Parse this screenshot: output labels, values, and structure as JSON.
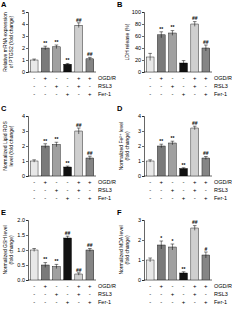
{
  "chart_data": [
    {
      "type": "bar",
      "title": "A",
      "y_label": [
        "Relative mRNA expression",
        "of PTGS2 (fold change)"
      ],
      "categories": [
        null,
        null,
        null,
        null,
        null,
        null
      ],
      "values": [
        1.0,
        2.0,
        2.1,
        0.65,
        3.9,
        1.1
      ],
      "errors": [
        0.08,
        0.15,
        0.15,
        0.06,
        0.2,
        0.12
      ],
      "annotations": [
        null,
        "**",
        "**",
        "**",
        "##",
        "##"
      ],
      "colors": [
        "#e8e8e8",
        "#7a7a7a",
        "#a0a0a0",
        "#111111",
        "#cfcfcf",
        "#858585"
      ],
      "ylim": [
        0,
        5
      ],
      "yticks": [
        0,
        1,
        2,
        3,
        4,
        5
      ],
      "conditions": [
        {
          "name": "OGD/R",
          "signs": [
            "-",
            "+",
            "-",
            "-",
            "+",
            "+"
          ]
        },
        {
          "name": "RSL3",
          "signs": [
            "-",
            "-",
            "+",
            "-",
            "+",
            "-"
          ]
        },
        {
          "name": "Fer-1",
          "signs": [
            "-",
            "-",
            "-",
            "+",
            "-",
            "+"
          ]
        }
      ]
    },
    {
      "type": "bar",
      "title": "B",
      "y_label": [
        "LDH release (%)"
      ],
      "categories": [
        null,
        null,
        null,
        null,
        null,
        null
      ],
      "values": [
        25,
        62,
        65,
        15,
        80,
        40
      ],
      "errors": [
        6,
        5,
        4,
        4,
        4,
        5
      ],
      "annotations": [
        null,
        "**",
        "**",
        null,
        "##",
        "##"
      ],
      "colors": [
        "#e8e8e8",
        "#7a7a7a",
        "#a0a0a0",
        "#111111",
        "#cfcfcf",
        "#858585"
      ],
      "ylim": [
        0,
        100
      ],
      "yticks": [
        0,
        20,
        40,
        60,
        80,
        100
      ],
      "conditions": [
        {
          "name": "OGD/R",
          "signs": [
            "-",
            "+",
            "-",
            "-",
            "+",
            "+"
          ]
        },
        {
          "name": "RSL3",
          "signs": [
            "-",
            "-",
            "+",
            "-",
            "+",
            "-"
          ]
        },
        {
          "name": "Fer-1",
          "signs": [
            "-",
            "-",
            "-",
            "+",
            "-",
            "+"
          ]
        }
      ]
    },
    {
      "type": "bar",
      "title": "C",
      "y_label": [
        "Normalized Lipid ROS",
        "level (fold change)"
      ],
      "categories": [
        null,
        null,
        null,
        null,
        null,
        null
      ],
      "values": [
        1.0,
        2.0,
        2.1,
        0.6,
        3.0,
        1.2
      ],
      "errors": [
        0.08,
        0.15,
        0.15,
        0.06,
        0.2,
        0.12
      ],
      "annotations": [
        null,
        "**",
        "**",
        "**",
        "##",
        "##"
      ],
      "colors": [
        "#e8e8e8",
        "#7a7a7a",
        "#a0a0a0",
        "#111111",
        "#cfcfcf",
        "#858585"
      ],
      "ylim": [
        0,
        4
      ],
      "yticks": [
        0,
        1,
        2,
        3,
        4
      ],
      "conditions": [
        {
          "name": "OGD/R",
          "signs": [
            "-",
            "+",
            "-",
            "-",
            "+",
            "+"
          ]
        },
        {
          "name": "RSL3",
          "signs": [
            "-",
            "-",
            "+",
            "-",
            "+",
            "-"
          ]
        },
        {
          "name": "Fer-1",
          "signs": [
            "-",
            "-",
            "-",
            "+",
            "-",
            "+"
          ]
        }
      ]
    },
    {
      "type": "bar",
      "title": "D",
      "y_label": [
        "Normalized Fe²⁺ level",
        "(fold change)"
      ],
      "categories": [
        null,
        null,
        null,
        null,
        null,
        null
      ],
      "values": [
        1.0,
        2.0,
        2.2,
        0.5,
        3.2,
        1.2
      ],
      "errors": [
        0.08,
        0.12,
        0.12,
        0.05,
        0.12,
        0.1
      ],
      "annotations": [
        null,
        "**",
        "**",
        "**",
        "##",
        "##"
      ],
      "colors": [
        "#e8e8e8",
        "#7a7a7a",
        "#a0a0a0",
        "#111111",
        "#cfcfcf",
        "#858585"
      ],
      "ylim": [
        0,
        4
      ],
      "yticks": [
        0,
        1,
        2,
        3,
        4
      ],
      "conditions": [
        {
          "name": "OGD/R",
          "signs": [
            "-",
            "+",
            "-",
            "-",
            "+",
            "+"
          ]
        },
        {
          "name": "RSL3",
          "signs": [
            "-",
            "-",
            "+",
            "-",
            "+",
            "-"
          ]
        },
        {
          "name": "Fer-1",
          "signs": [
            "-",
            "-",
            "-",
            "+",
            "-",
            "+"
          ]
        }
      ]
    },
    {
      "type": "bar",
      "title": "E",
      "y_label": [
        "Normalized GSH level",
        "(fold change)"
      ],
      "categories": [
        null,
        null,
        null,
        null,
        null,
        null
      ],
      "values": [
        1.0,
        0.5,
        0.45,
        1.4,
        0.2,
        1.0
      ],
      "errors": [
        0.05,
        0.08,
        0.07,
        0.06,
        0.04,
        0.05
      ],
      "annotations": [
        null,
        "**",
        "**",
        "##",
        "##",
        "##"
      ],
      "colors": [
        "#e8e8e8",
        "#7a7a7a",
        "#a0a0a0",
        "#111111",
        "#cfcfcf",
        "#858585"
      ],
      "ylim": [
        0,
        2
      ],
      "yticks": [
        {
          "value": 0,
          "label": "0.0"
        },
        0.5,
        {
          "value": 1,
          "label": "1.0"
        },
        1.5,
        {
          "value": 2,
          "label": "2.0"
        }
      ],
      "conditions": [
        {
          "name": "OGD/R",
          "signs": [
            "-",
            "+",
            "-",
            "-",
            "+",
            "+"
          ]
        },
        {
          "name": "RSL3",
          "signs": [
            "-",
            "-",
            "+",
            "-",
            "+",
            "-"
          ]
        },
        {
          "name": "Fer-1",
          "signs": [
            "-",
            "-",
            "-",
            "+",
            "-",
            "+"
          ]
        }
      ]
    },
    {
      "type": "bar",
      "title": "F",
      "y_label": [
        "Normalized MDA level",
        "(fold change)"
      ],
      "categories": [
        null,
        null,
        null,
        null,
        null,
        null
      ],
      "values": [
        1.0,
        1.75,
        1.65,
        0.35,
        2.6,
        1.25
      ],
      "errors": [
        0.1,
        0.2,
        0.15,
        0.06,
        0.12,
        0.15
      ],
      "annotations": [
        null,
        "*",
        "*",
        "**",
        "##",
        "#"
      ],
      "colors": [
        "#e8e8e8",
        "#7a7a7a",
        "#a0a0a0",
        "#111111",
        "#cfcfcf",
        "#858585"
      ],
      "ylim": [
        0,
        3
      ],
      "yticks": [
        0,
        1,
        2,
        3
      ],
      "conditions": [
        {
          "name": "OGD/R",
          "signs": [
            "-",
            "+",
            "-",
            "-",
            "+",
            "+"
          ]
        },
        {
          "name": "RSL3",
          "signs": [
            "-",
            "-",
            "+",
            "-",
            "+",
            "-"
          ]
        },
        {
          "name": "Fer-1",
          "signs": [
            "-",
            "-",
            "-",
            "+",
            "-",
            "+"
          ]
        }
      ]
    }
  ]
}
